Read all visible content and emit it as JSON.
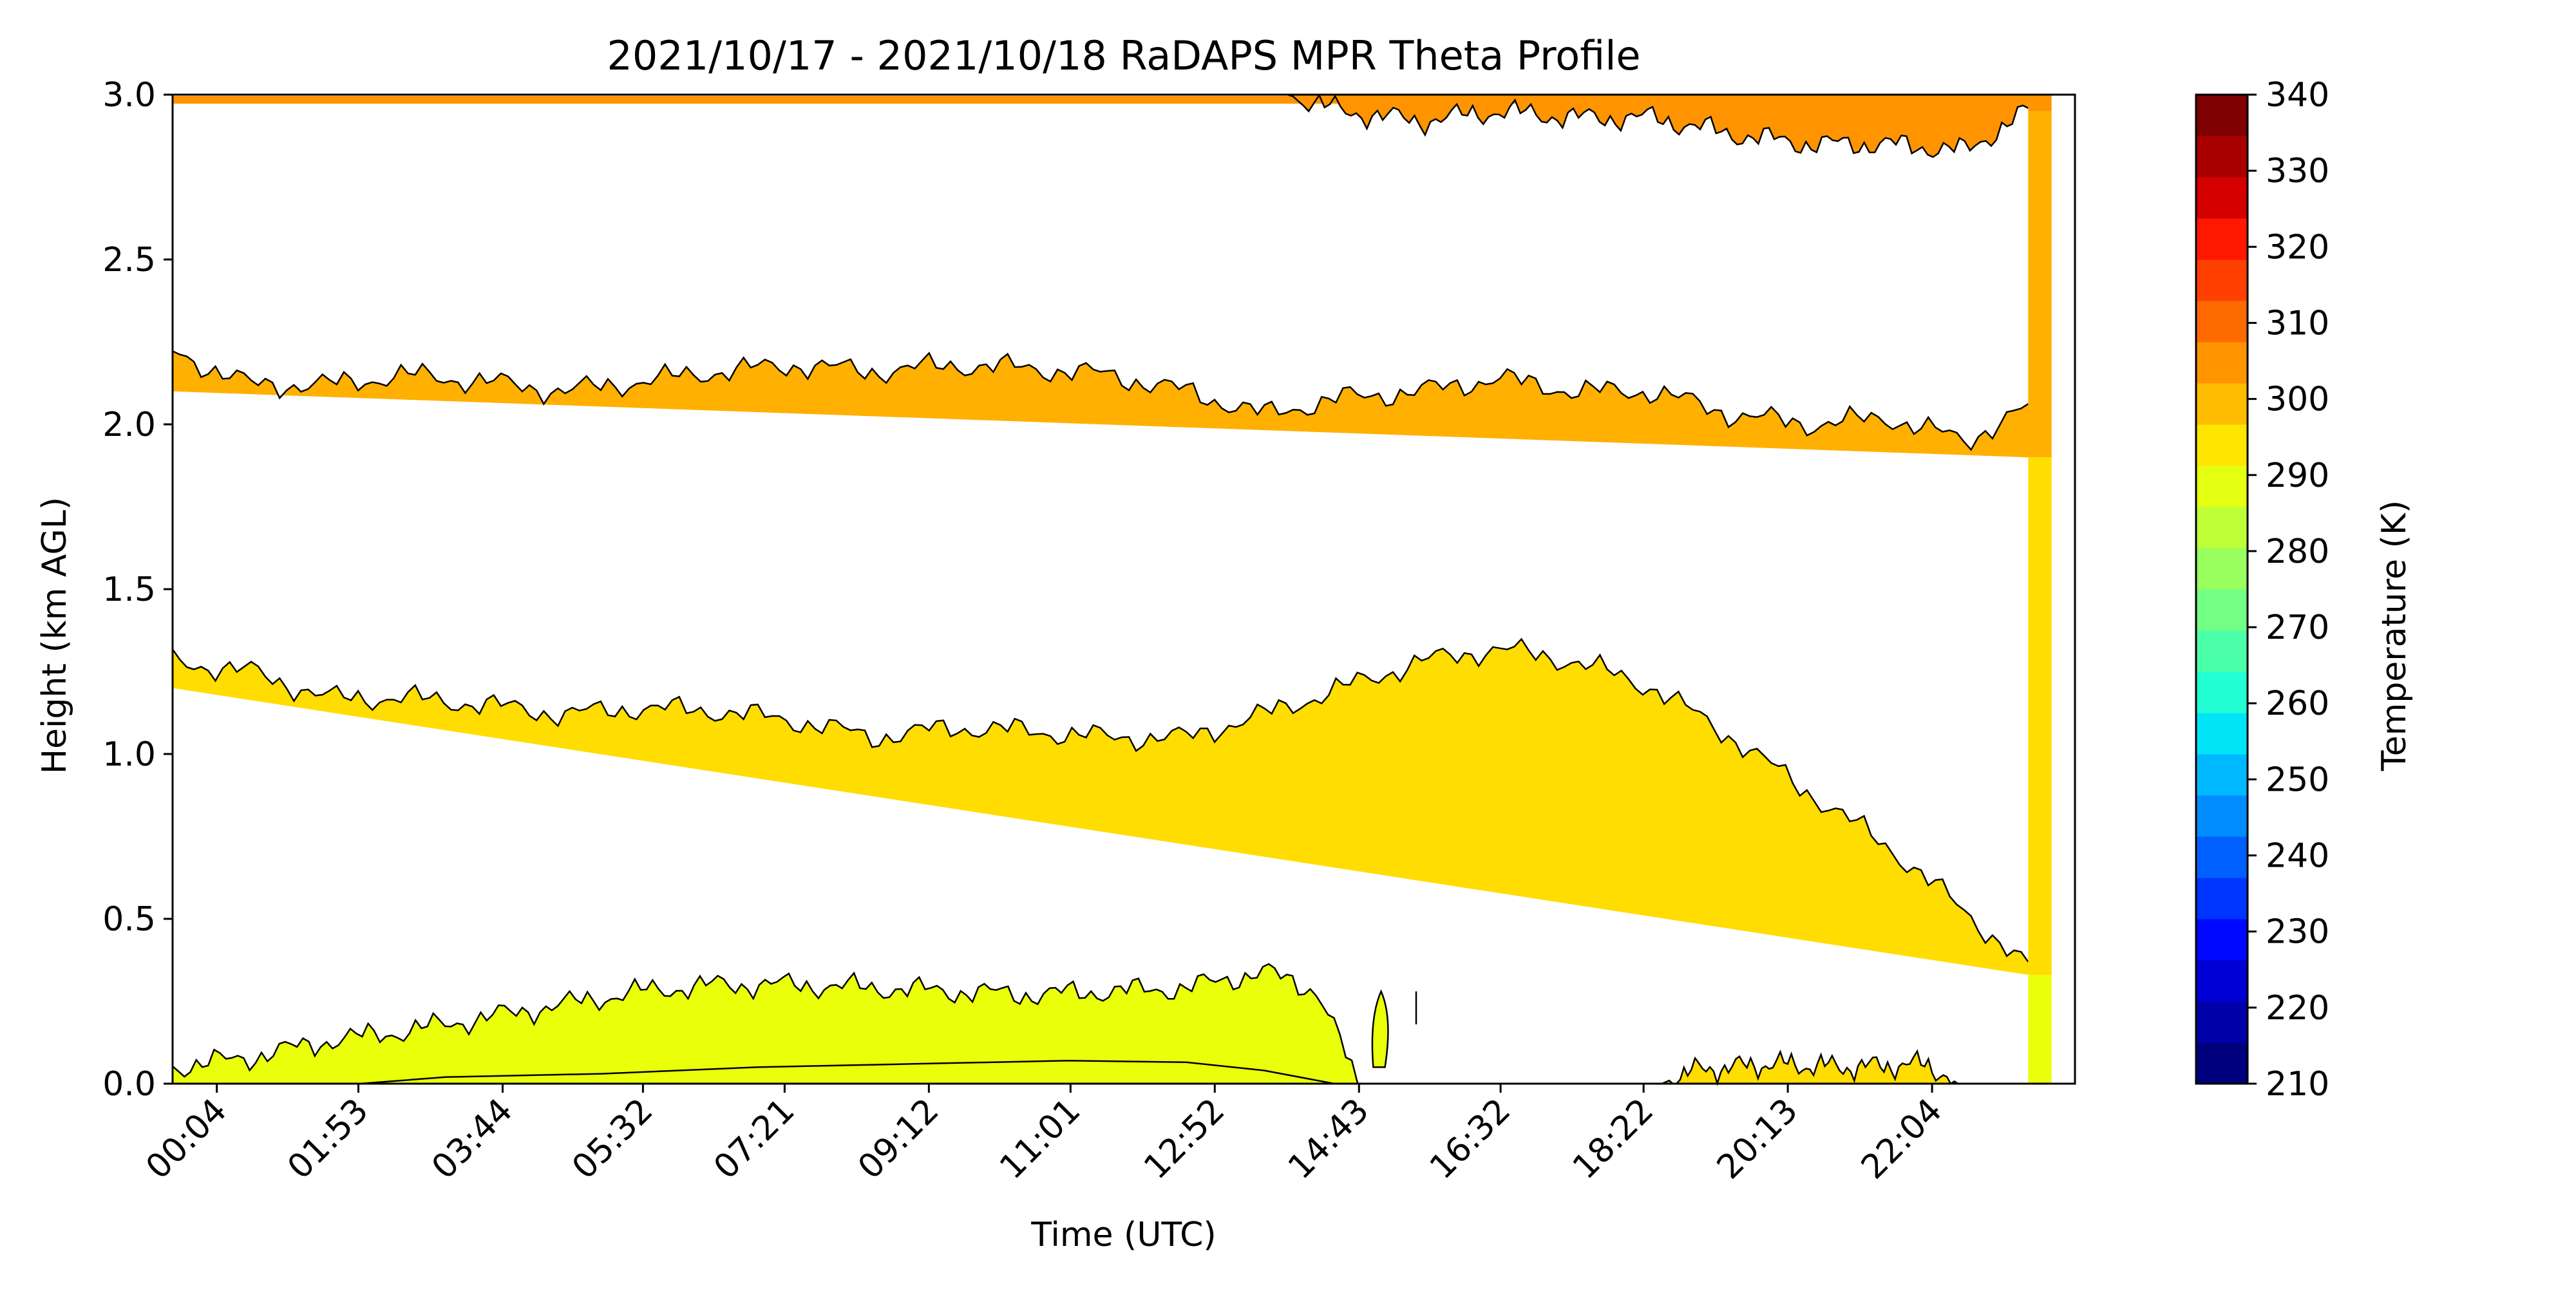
{
  "chart_data": {
    "type": "heatmap",
    "title": "2021/10/17 - 2021/10/18 RaDAPS MPR Theta Profile",
    "xlabel": "Time (UTC)",
    "ylabel": "Height (km AGL)",
    "ylim": [
      0,
      3.0
    ],
    "xlim_hours": [
      -0.5,
      23.9
    ],
    "x_ticks": [
      {
        "label": "00:04",
        "hour": 0.067
      },
      {
        "label": "01:53",
        "hour": 1.883
      },
      {
        "label": "03:44",
        "hour": 3.733
      },
      {
        "label": "05:32",
        "hour": 5.533
      },
      {
        "label": "07:21",
        "hour": 7.35
      },
      {
        "label": "09:12",
        "hour": 9.2
      },
      {
        "label": "11:01",
        "hour": 11.017
      },
      {
        "label": "12:52",
        "hour": 12.867
      },
      {
        "label": "14:43",
        "hour": 14.717
      },
      {
        "label": "16:32",
        "hour": 16.533
      },
      {
        "label": "18:22",
        "hour": 18.367
      },
      {
        "label": "20:13",
        "hour": 20.217
      },
      {
        "label": "22:04",
        "hour": 22.067
      }
    ],
    "y_ticks": [
      {
        "label": "0.0",
        "value": 0.0
      },
      {
        "label": "0.5",
        "value": 0.5
      },
      {
        "label": "1.0",
        "value": 1.0
      },
      {
        "label": "1.5",
        "value": 1.5
      },
      {
        "label": "2.0",
        "value": 2.0
      },
      {
        "label": "2.5",
        "value": 2.5
      },
      {
        "label": "3.0",
        "value": 3.0
      }
    ],
    "contour_bands": [
      {
        "level": 290,
        "color": "#ffdd00",
        "boundary": [
          [
            -0.5,
            1.28
          ],
          [
            0.5,
            1.25
          ],
          [
            1.5,
            1.17
          ],
          [
            2.5,
            1.17
          ],
          [
            3.5,
            1.15
          ],
          [
            4.5,
            1.12
          ],
          [
            5.5,
            1.14
          ],
          [
            6.5,
            1.13
          ],
          [
            7.5,
            1.1
          ],
          [
            8.5,
            1.05
          ],
          [
            9.5,
            1.08
          ],
          [
            10.5,
            1.07
          ],
          [
            11.5,
            1.05
          ],
          [
            12.5,
            1.05
          ],
          [
            13.5,
            1.12
          ],
          [
            14.5,
            1.2
          ],
          [
            15.5,
            1.28
          ],
          [
            16.5,
            1.32
          ],
          [
            17.5,
            1.28
          ],
          [
            18.5,
            1.2
          ],
          [
            19.5,
            1.05
          ],
          [
            20.5,
            0.88
          ],
          [
            21.5,
            0.72
          ],
          [
            22.5,
            0.52
          ],
          [
            23.3,
            0.35
          ]
        ],
        "base_start": 1.2,
        "base_end": 0.33
      },
      {
        "level": 300,
        "color": "#ffb000",
        "boundary": [
          [
            -0.5,
            2.22
          ],
          [
            0.5,
            2.12
          ],
          [
            1.5,
            2.12
          ],
          [
            2.5,
            2.15
          ],
          [
            3.5,
            2.13
          ],
          [
            4.5,
            2.1
          ],
          [
            5.5,
            2.13
          ],
          [
            6.5,
            2.16
          ],
          [
            7.5,
            2.18
          ],
          [
            8.5,
            2.16
          ],
          [
            9.5,
            2.18
          ],
          [
            10.5,
            2.17
          ],
          [
            11.5,
            2.15
          ],
          [
            12.5,
            2.1
          ],
          [
            13.5,
            2.03
          ],
          [
            14.5,
            2.08
          ],
          [
            15.5,
            2.1
          ],
          [
            16.5,
            2.14
          ],
          [
            17.5,
            2.1
          ],
          [
            18.5,
            2.1
          ],
          [
            19.5,
            2.03
          ],
          [
            20.5,
            2.0
          ],
          [
            21.5,
            2.02
          ],
          [
            22.5,
            1.95
          ],
          [
            23.3,
            2.05
          ]
        ],
        "base_start": 2.1,
        "base_end": 1.9
      },
      {
        "level": 305,
        "color": "#ff9400",
        "boundary": [
          [
            13.8,
            3.0
          ],
          [
            14.5,
            2.95
          ],
          [
            15.5,
            2.92
          ],
          [
            16.5,
            2.95
          ],
          [
            17.5,
            2.93
          ],
          [
            18.5,
            2.93
          ],
          [
            19.5,
            2.88
          ],
          [
            20.5,
            2.85
          ],
          [
            21.5,
            2.85
          ],
          [
            22.5,
            2.83
          ],
          [
            23.3,
            2.95
          ]
        ]
      }
    ],
    "surface_band": {
      "level": 295,
      "color": "#eaff0a",
      "boundary": [
        [
          -0.5,
          0.05
        ],
        [
          0.5,
          0.08
        ],
        [
          1.5,
          0.13
        ],
        [
          2.5,
          0.16
        ],
        [
          3.5,
          0.2
        ],
        [
          4.5,
          0.24
        ],
        [
          5.5,
          0.28
        ],
        [
          6.5,
          0.3
        ],
        [
          7.5,
          0.3
        ],
        [
          8.5,
          0.29
        ],
        [
          9.5,
          0.28
        ],
        [
          10.5,
          0.27
        ],
        [
          11.5,
          0.28
        ],
        [
          12.5,
          0.29
        ],
        [
          13.5,
          0.34
        ],
        [
          14.2,
          0.28
        ],
        [
          14.7,
          0.0
        ]
      ]
    },
    "late_warm_patch": {
      "color": "#ffdd00",
      "boundary": [
        [
          18.6,
          0.0
        ],
        [
          19.0,
          0.04
        ],
        [
          20.0,
          0.06
        ],
        [
          21.0,
          0.05
        ],
        [
          22.0,
          0.06
        ],
        [
          22.4,
          0.0
        ]
      ]
    },
    "colorbar": {
      "label": "Temperature (K)",
      "range": [
        210,
        340
      ],
      "tick_labels": [
        "210",
        "220",
        "230",
        "240",
        "250",
        "260",
        "270",
        "280",
        "290",
        "300",
        "310",
        "320",
        "330",
        "340"
      ],
      "colors": [
        "#00007f",
        "#0000a8",
        "#0000d4",
        "#0008ff",
        "#0034ff",
        "#0060ff",
        "#008cff",
        "#00b8ff",
        "#00e4f8",
        "#22ffd4",
        "#4cffaa",
        "#72ff84",
        "#98ff5e",
        "#beff38",
        "#e4ff12",
        "#ffe600",
        "#ffbc00",
        "#ff9400",
        "#ff6a00",
        "#ff4000",
        "#ff1800",
        "#d40000",
        "#a80000",
        "#7f0000"
      ]
    }
  }
}
